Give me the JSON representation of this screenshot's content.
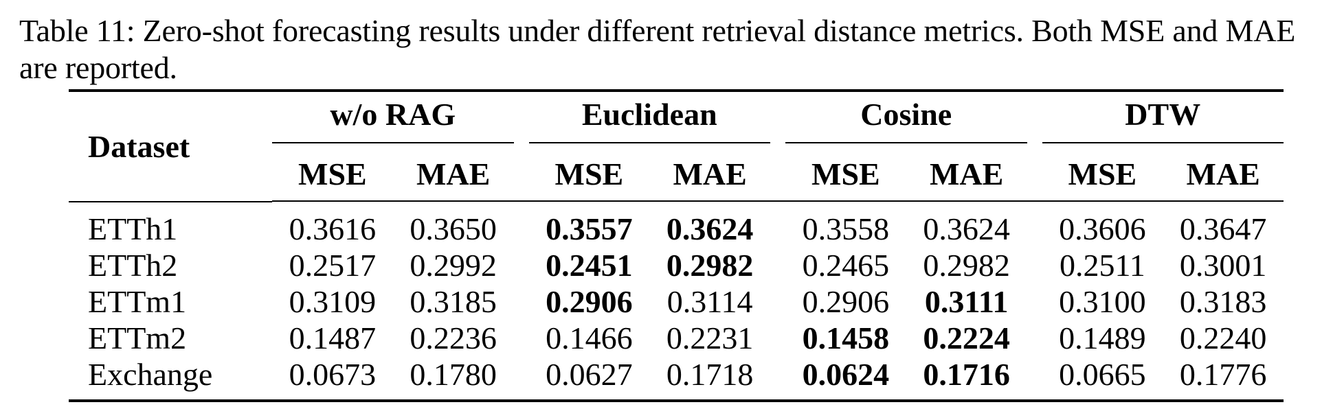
{
  "caption": "Table 11: Zero-shot forecasting results under different retrieval distance metrics. Both MSE and MAE are reported.",
  "table": {
    "dataset_header": "Dataset",
    "groups": [
      {
        "label": "w/o RAG",
        "sub": [
          "MSE",
          "MAE"
        ]
      },
      {
        "label": "Euclidean",
        "sub": [
          "MSE",
          "MAE"
        ]
      },
      {
        "label": "Cosine",
        "sub": [
          "MSE",
          "MAE"
        ]
      },
      {
        "label": "DTW",
        "sub": [
          "MSE",
          "MAE"
        ]
      }
    ],
    "rows": [
      {
        "dataset": "ETTh1",
        "values": [
          "0.3616",
          "0.3650",
          "0.3557",
          "0.3624",
          "0.3558",
          "0.3624",
          "0.3606",
          "0.3647"
        ],
        "bold": [
          false,
          false,
          true,
          true,
          false,
          false,
          false,
          false
        ]
      },
      {
        "dataset": "ETTh2",
        "values": [
          "0.2517",
          "0.2992",
          "0.2451",
          "0.2982",
          "0.2465",
          "0.2982",
          "0.2511",
          "0.3001"
        ],
        "bold": [
          false,
          false,
          true,
          true,
          false,
          false,
          false,
          false
        ]
      },
      {
        "dataset": "ETTm1",
        "values": [
          "0.3109",
          "0.3185",
          "0.2906",
          "0.3114",
          "0.2906",
          "0.3111",
          "0.3100",
          "0.3183"
        ],
        "bold": [
          false,
          false,
          true,
          false,
          false,
          true,
          false,
          false
        ]
      },
      {
        "dataset": "ETTm2",
        "values": [
          "0.1487",
          "0.2236",
          "0.1466",
          "0.2231",
          "0.1458",
          "0.2224",
          "0.1489",
          "0.2240"
        ],
        "bold": [
          false,
          false,
          false,
          false,
          true,
          true,
          false,
          false
        ]
      },
      {
        "dataset": "Exchange",
        "values": [
          "0.0673",
          "0.1780",
          "0.0627",
          "0.1718",
          "0.0624",
          "0.1716",
          "0.0665",
          "0.1776"
        ],
        "bold": [
          false,
          false,
          false,
          false,
          true,
          true,
          false,
          false
        ]
      }
    ]
  }
}
